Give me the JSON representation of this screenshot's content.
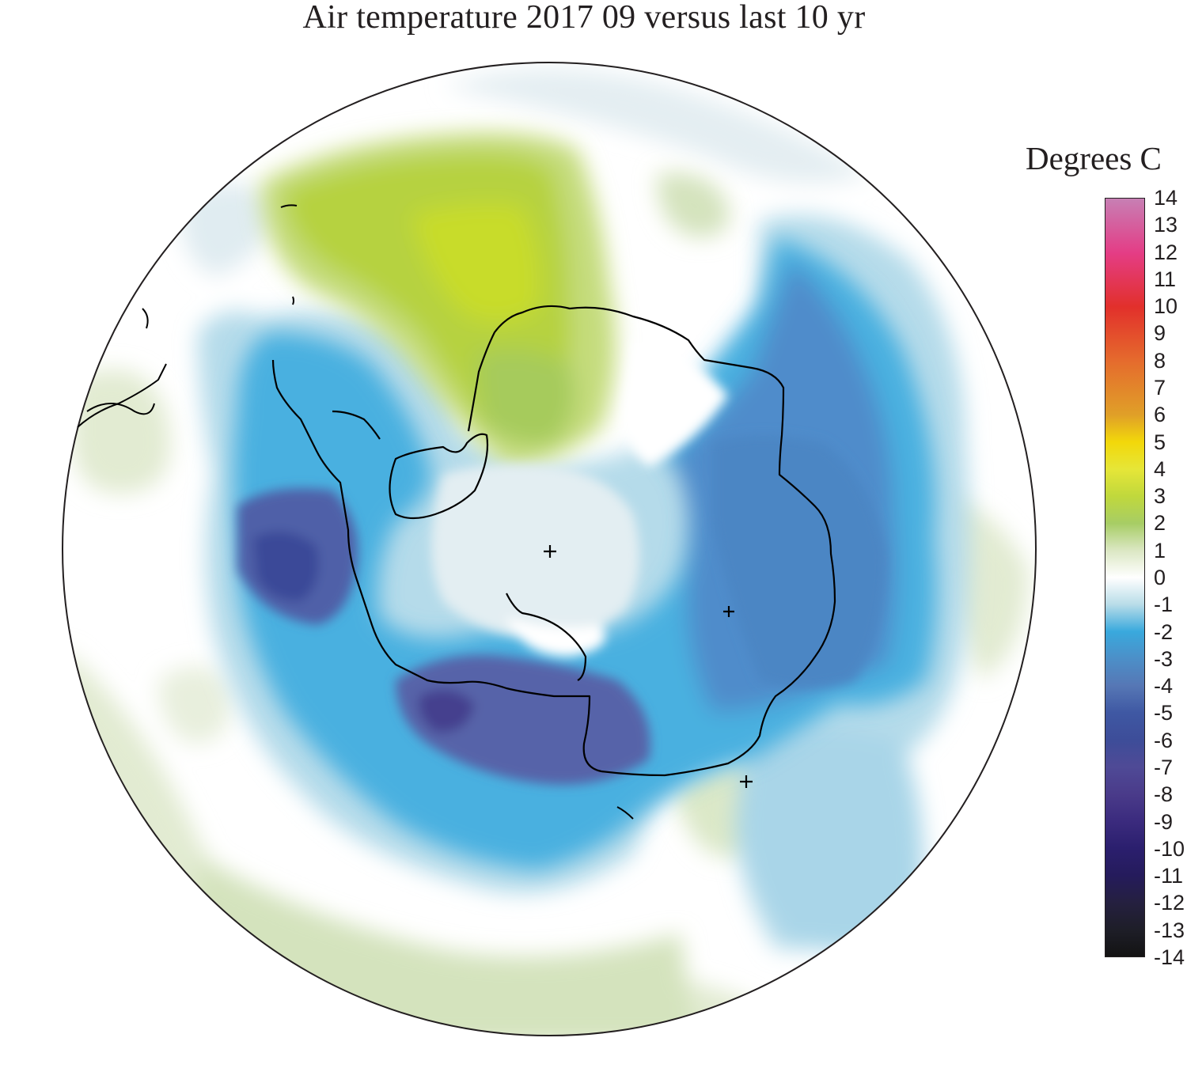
{
  "title": "Air temperature 2017 09 versus last 10 yr",
  "legend": {
    "title": "Degrees C",
    "ticks": [
      "14",
      "13",
      "12",
      "11",
      "10",
      "9",
      "8",
      "7",
      "6",
      "5",
      "4",
      "3",
      "2",
      "1",
      "0",
      "-1",
      "-2",
      "-3",
      "-4",
      "-5",
      "-6",
      "-7",
      "-8",
      "-9",
      "-10",
      "-11",
      "-12",
      "-13",
      "-14"
    ],
    "range": [
      -14,
      14
    ],
    "colors": {
      "14": "#c77fb4",
      "12": "#e43d86",
      "10": "#e2302b",
      "8": "#e56b2d",
      "6": "#e0a028",
      "5": "#f2d80a",
      "4": "#e6e638",
      "3": "#c0d83c",
      "2": "#a7cd65",
      "1": "#dbe7c3",
      "0": "#ffffff",
      "-1": "#b8dce8",
      "-2": "#39a9dd",
      "-3": "#4c8fc8",
      "-4": "#5677b5",
      "-5": "#3f58a3",
      "-6": "#3d4d99",
      "-7": "#4f4a96",
      "-8": "#4a3b8a",
      "-9": "#3b2b7e",
      "-10": "#2b1f6e",
      "-11": "#251b5c",
      "-12": "#252040",
      "-13": "#1e1e28",
      "-14": "#131313"
    }
  },
  "map": {
    "projection": "south polar stereographic",
    "region": "Antarctica and Southern Ocean"
  }
}
